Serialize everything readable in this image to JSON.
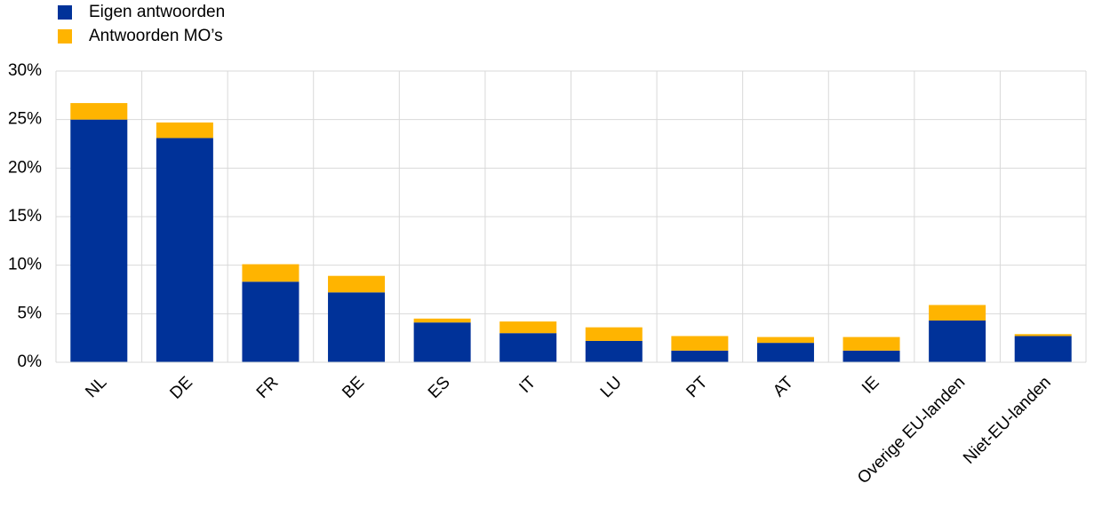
{
  "chart_data": {
    "type": "stacked_bar",
    "categories": [
      "NL",
      "DE",
      "FR",
      "BE",
      "ES",
      "IT",
      "LU",
      "PT",
      "AT",
      "IE",
      "Overige EU-landen",
      "Niet-EU-landen"
    ],
    "series": [
      {
        "name": "Eigen antwoorden",
        "color": "#003299",
        "values": [
          25.0,
          23.1,
          8.3,
          7.2,
          4.1,
          3.0,
          2.2,
          1.2,
          2.0,
          1.2,
          4.3,
          2.7
        ]
      },
      {
        "name": "Antwoorden MO’s",
        "color": "#ffb400",
        "values": [
          1.7,
          1.6,
          1.8,
          1.7,
          0.4,
          1.2,
          1.4,
          1.5,
          0.6,
          1.4,
          1.6,
          0.2
        ]
      }
    ],
    "ylim": [
      0,
      30
    ],
    "yticks": [
      {
        "value": 0,
        "label": "0%"
      },
      {
        "value": 5,
        "label": "5%"
      },
      {
        "value": 10,
        "label": "10%"
      },
      {
        "value": 15,
        "label": "15%"
      },
      {
        "value": 20,
        "label": "20%"
      },
      {
        "value": 25,
        "label": "25%"
      },
      {
        "value": 30,
        "label": "30%"
      }
    ],
    "grid": true,
    "legend": "top-left"
  }
}
